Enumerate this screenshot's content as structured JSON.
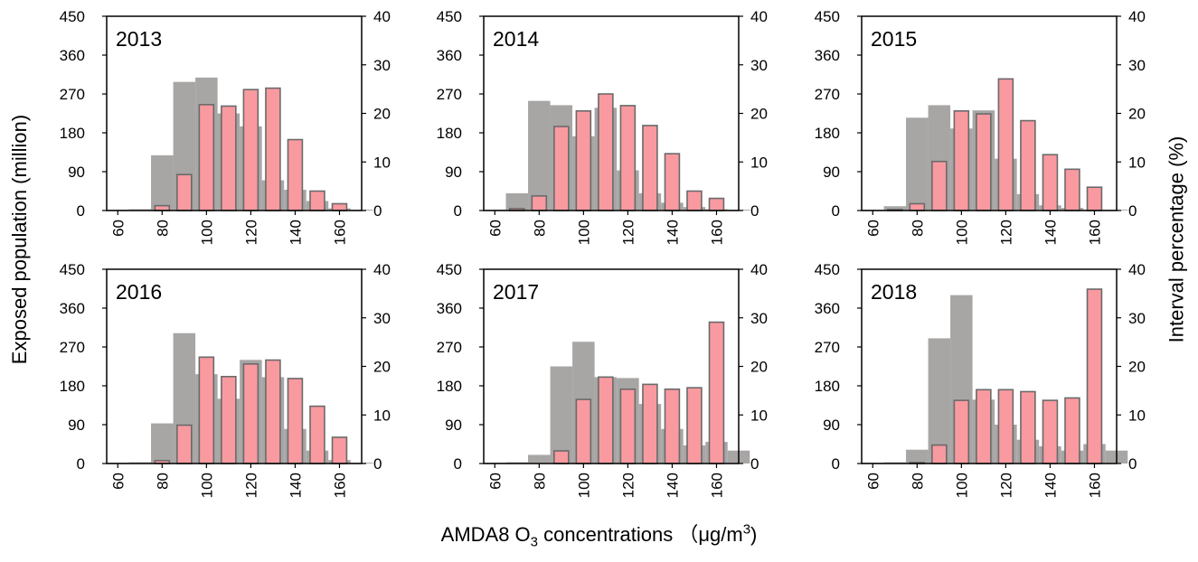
{
  "figure": {
    "y_left_title": "Exposed population (million)",
    "y_right_title": "Interval percentage (%)",
    "x_title": {
      "prefix": "AMDA8 O",
      "sub": "3",
      "middle": " concentrations （μg/m",
      "sup": "3",
      "suffix": ")"
    },
    "colors": {
      "population": "#a8a5a5",
      "percentage": "#f99aa0",
      "percentage_edge": "#6a6a6a",
      "axis": "#000000"
    }
  },
  "chart_data": [
    {
      "type": "bar",
      "title": "2013",
      "categories": [
        60,
        70,
        80,
        90,
        100,
        110,
        120,
        130,
        140,
        150,
        160,
        170
      ],
      "x_ticks": [
        60,
        80,
        100,
        120,
        140,
        160
      ],
      "series": [
        {
          "name": "Exposed population",
          "axis": "left",
          "values": [
            2,
            3,
            128,
            298,
            308,
            225,
            195,
            70,
            48,
            22,
            5,
            2
          ]
        },
        {
          "name": "Interval percentage",
          "axis": "right",
          "values": [
            0,
            0,
            1.0,
            7.4,
            21.8,
            21.5,
            24.9,
            25.2,
            14.6,
            4.0,
            1.4,
            0
          ]
        }
      ],
      "ylim_left": [
        0,
        450
      ],
      "yticks_left": [
        0,
        90,
        180,
        270,
        360,
        450
      ],
      "ylim_right": [
        0,
        40
      ],
      "yticks_right": [
        0,
        10,
        20,
        30,
        40
      ]
    },
    {
      "type": "bar",
      "title": "2014",
      "categories": [
        60,
        70,
        80,
        90,
        100,
        110,
        120,
        130,
        140,
        150,
        160,
        170
      ],
      "x_ticks": [
        60,
        80,
        100,
        120,
        140,
        160
      ],
      "series": [
        {
          "name": "Exposed population",
          "axis": "left",
          "values": [
            2,
            40,
            254,
            244,
            172,
            238,
            93,
            40,
            18,
            8,
            3,
            2
          ]
        },
        {
          "name": "Interval percentage",
          "axis": "right",
          "values": [
            0,
            0.4,
            3.0,
            17.3,
            20.5,
            24.0,
            21.6,
            17.5,
            11.7,
            4.0,
            2.5,
            0
          ]
        }
      ],
      "ylim_left": [
        0,
        450
      ],
      "yticks_left": [
        0,
        90,
        180,
        270,
        360,
        450
      ],
      "ylim_right": [
        0,
        40
      ],
      "yticks_right": [
        0,
        10,
        20,
        30,
        40
      ]
    },
    {
      "type": "bar",
      "title": "2015",
      "categories": [
        60,
        70,
        80,
        90,
        100,
        110,
        120,
        130,
        140,
        150,
        160,
        170
      ],
      "x_ticks": [
        60,
        80,
        100,
        120,
        140,
        160
      ],
      "series": [
        {
          "name": "Exposed population",
          "axis": "left",
          "values": [
            2,
            10,
            215,
            244,
            190,
            232,
            120,
            38,
            12,
            6,
            2,
            2
          ]
        },
        {
          "name": "Interval percentage",
          "axis": "right",
          "values": [
            0,
            0.2,
            1.4,
            10.1,
            20.5,
            19.9,
            27.1,
            18.5,
            11.5,
            8.5,
            4.8,
            0
          ]
        }
      ],
      "ylim_left": [
        0,
        450
      ],
      "yticks_left": [
        0,
        90,
        180,
        270,
        360,
        450
      ],
      "ylim_right": [
        0,
        40
      ],
      "yticks_right": [
        0,
        10,
        20,
        30,
        40
      ]
    },
    {
      "type": "bar",
      "title": "2016",
      "categories": [
        60,
        70,
        80,
        90,
        100,
        110,
        120,
        130,
        140,
        150,
        160,
        170
      ],
      "x_ticks": [
        60,
        80,
        100,
        120,
        140,
        160
      ],
      "series": [
        {
          "name": "Exposed population",
          "axis": "left",
          "values": [
            2,
            3,
            93,
            302,
            207,
            150,
            240,
            200,
            80,
            30,
            8,
            2
          ]
        },
        {
          "name": "Interval percentage",
          "axis": "right",
          "values": [
            0,
            0,
            0.6,
            7.9,
            21.9,
            17.9,
            20.5,
            21.3,
            17.5,
            11.8,
            5.4,
            0
          ]
        }
      ],
      "ylim_left": [
        0,
        450
      ],
      "yticks_left": [
        0,
        90,
        180,
        270,
        360,
        450
      ],
      "ylim_right": [
        0,
        40
      ],
      "yticks_right": [
        0,
        10,
        20,
        30,
        40
      ]
    },
    {
      "type": "bar",
      "title": "2017",
      "categories": [
        60,
        70,
        80,
        90,
        100,
        110,
        120,
        130,
        140,
        150,
        160,
        170
      ],
      "x_ticks": [
        60,
        80,
        100,
        120,
        140,
        160
      ],
      "series": [
        {
          "name": "Exposed population",
          "axis": "left",
          "values": [
            2,
            3,
            20,
            225,
            282,
            200,
            198,
            138,
            80,
            42,
            50,
            30
          ]
        },
        {
          "name": "Interval percentage",
          "axis": "right",
          "values": [
            0,
            0,
            0,
            2.6,
            13.2,
            17.8,
            15.3,
            16.3,
            15.3,
            15.6,
            29.1,
            0
          ]
        }
      ],
      "ylim_left": [
        0,
        450
      ],
      "yticks_left": [
        0,
        90,
        180,
        270,
        360,
        450
      ],
      "ylim_right": [
        0,
        40
      ],
      "yticks_right": [
        0,
        10,
        20,
        30,
        40
      ]
    },
    {
      "type": "bar",
      "title": "2018",
      "categories": [
        60,
        70,
        80,
        90,
        100,
        110,
        120,
        130,
        140,
        150,
        160,
        170
      ],
      "x_ticks": [
        60,
        80,
        100,
        120,
        140,
        160
      ],
      "series": [
        {
          "name": "Exposed population",
          "axis": "left",
          "values": [
            2,
            3,
            32,
            290,
            390,
            148,
            90,
            55,
            40,
            30,
            45,
            30
          ]
        },
        {
          "name": "Interval percentage",
          "axis": "right",
          "values": [
            0,
            0,
            0.2,
            3.8,
            13.0,
            15.2,
            15.2,
            14.8,
            13.0,
            13.5,
            35.9,
            0
          ]
        }
      ],
      "ylim_left": [
        0,
        450
      ],
      "yticks_left": [
        0,
        90,
        180,
        270,
        360,
        450
      ],
      "ylim_right": [
        0,
        40
      ],
      "yticks_right": [
        0,
        10,
        20,
        30,
        40
      ]
    }
  ]
}
